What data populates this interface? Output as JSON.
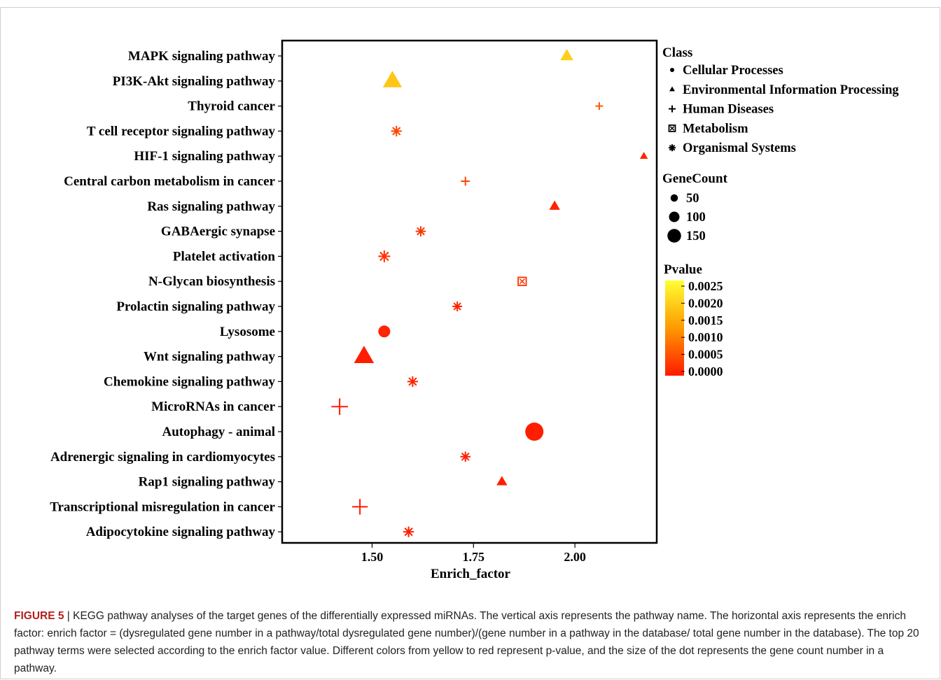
{
  "chart_data": {
    "type": "scatter",
    "xlabel": "Enrich_factor",
    "xlim": [
      1.28,
      2.2
    ],
    "x_ticks": [
      "1.50",
      "1.75",
      "2.00"
    ],
    "x_tick_values": [
      1.5,
      1.75,
      2.0
    ],
    "pathways": [
      {
        "name": "MAPK signaling pathway",
        "x": 1.98,
        "gene_count": 75,
        "pvalue": 0.0019,
        "class": "Environmental Information Processing"
      },
      {
        "name": "PI3K-Akt signaling pathway",
        "x": 1.55,
        "gene_count": 140,
        "pvalue": 0.0018,
        "class": "Environmental Information Processing"
      },
      {
        "name": "Thyroid cancer",
        "x": 2.06,
        "gene_count": 25,
        "pvalue": 0.0006,
        "class": "Human Diseases"
      },
      {
        "name": "T cell receptor signaling pathway",
        "x": 1.56,
        "gene_count": 60,
        "pvalue": 0.0004,
        "class": "Organismal Systems"
      },
      {
        "name": "HIF-1 signaling pathway",
        "x": 2.17,
        "gene_count": 20,
        "pvalue": 0.0001,
        "class": "Environmental Information Processing"
      },
      {
        "name": "Central carbon metabolism in cancer",
        "x": 1.73,
        "gene_count": 40,
        "pvalue": 0.0004,
        "class": "Human Diseases"
      },
      {
        "name": "Ras signaling pathway",
        "x": 1.95,
        "gene_count": 50,
        "pvalue": 0.0001,
        "class": "Environmental Information Processing"
      },
      {
        "name": "GABAergic synapse",
        "x": 1.62,
        "gene_count": 55,
        "pvalue": 0.0003,
        "class": "Organismal Systems"
      },
      {
        "name": "Platelet activation",
        "x": 1.53,
        "gene_count": 75,
        "pvalue": 0.0002,
        "class": "Organismal Systems"
      },
      {
        "name": "N-Glycan biosynthesis",
        "x": 1.87,
        "gene_count": 40,
        "pvalue": 0.0002,
        "class": "Metabolism"
      },
      {
        "name": "Prolactin signaling pathway",
        "x": 1.71,
        "gene_count": 50,
        "pvalue": 0.0001,
        "class": "Organismal Systems"
      },
      {
        "name": "Lysosome",
        "x": 1.53,
        "gene_count": 75,
        "pvalue": 0.0001,
        "class": "Cellular Processes"
      },
      {
        "name": "Wnt signaling pathway",
        "x": 1.48,
        "gene_count": 150,
        "pvalue": 3e-05,
        "class": "Environmental Information Processing"
      },
      {
        "name": "Chemokine signaling pathway",
        "x": 1.6,
        "gene_count": 60,
        "pvalue": 0.0001,
        "class": "Organismal Systems"
      },
      {
        "name": "MicroRNAs in cancer",
        "x": 1.42,
        "gene_count": 130,
        "pvalue": 1e-05,
        "class": "Human Diseases"
      },
      {
        "name": "Autophagy - animal",
        "x": 1.9,
        "gene_count": 150,
        "pvalue": 5e-05,
        "class": "Cellular Processes"
      },
      {
        "name": "Adrenergic signaling in cardiomyocytes",
        "x": 1.73,
        "gene_count": 55,
        "pvalue": 5e-05,
        "class": "Organismal Systems"
      },
      {
        "name": "Rap1 signaling pathway",
        "x": 1.82,
        "gene_count": 50,
        "pvalue": 5e-05,
        "class": "Environmental Information Processing"
      },
      {
        "name": "Transcriptional misregulation in cancer",
        "x": 1.47,
        "gene_count": 120,
        "pvalue": 1e-05,
        "class": "Human Diseases"
      },
      {
        "name": "Adipocytokine signaling pathway",
        "x": 1.59,
        "gene_count": 60,
        "pvalue": 1e-05,
        "class": "Organismal Systems"
      }
    ],
    "legend": {
      "class_title": "Class",
      "classes": [
        {
          "label": "Cellular Processes",
          "symbol": "circle"
        },
        {
          "label": "Environmental Information Processing",
          "symbol": "triangle"
        },
        {
          "label": "Human Diseases",
          "symbol": "plus"
        },
        {
          "label": "Metabolism",
          "symbol": "boxed-cross"
        },
        {
          "label": "Organismal Systems",
          "symbol": "asterisk"
        }
      ],
      "size_title": "GeneCount",
      "sizes": [
        {
          "label": "50",
          "value": 50
        },
        {
          "label": "100",
          "value": 100
        },
        {
          "label": "150",
          "value": 150
        }
      ],
      "color_title": "Pvalue",
      "color_ticks": [
        "0.0025",
        "0.0020",
        "0.0015",
        "0.0010",
        "0.0005",
        "0.0000"
      ],
      "color_tick_values": [
        0.0025,
        0.002,
        0.0015,
        0.001,
        0.0005,
        0.0
      ],
      "color_low": "#ff1a00",
      "color_high": "#ffff33"
    },
    "legend_position": "right"
  },
  "caption": {
    "label": "FIGURE 5",
    "separator": " | ",
    "text": "KEGG pathway analyses of the target genes of the differentially expressed miRNAs. The vertical axis represents the pathway name. The horizontal axis represents the enrich factor: enrich factor = (dysregulated gene number in a pathway/total dysregulated gene number)/(gene number in a pathway in the database/ total gene number in the database). The top 20 pathway terms were selected according to the enrich factor value. Different colors from yellow to red represent p-value, and the size of the dot represents the gene count number in a pathway."
  }
}
